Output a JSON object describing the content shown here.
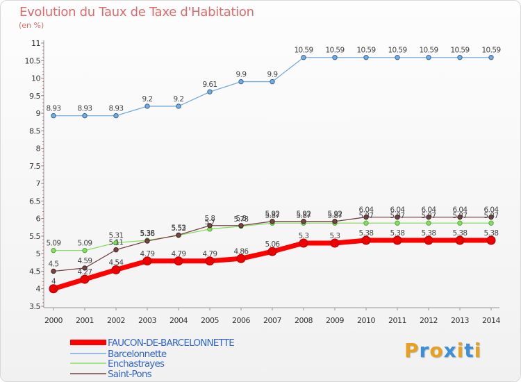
{
  "chart_data": {
    "type": "line",
    "title": "Evolution du Taux de Taxe d'Habitation",
    "subtitle": "(en %)",
    "xlabel": "",
    "ylabel": "",
    "x": [
      "2000",
      "2001",
      "2002",
      "2003",
      "2004",
      "2005",
      "2006",
      "2007",
      "2008",
      "2009",
      "2010",
      "2011",
      "2012",
      "2013",
      "2014"
    ],
    "ylim": [
      3.5,
      11
    ],
    "yticks": [
      "3.5",
      "4",
      "4.5",
      "5",
      "5.5",
      "6",
      "6.5",
      "7",
      "7.5",
      "8",
      "8.5",
      "9",
      "9.5",
      "10",
      "10.5",
      "11"
    ],
    "grid": false,
    "legend_position": "bottom-left",
    "series": [
      {
        "name": "FAUCON-DE-BARCELONNETTE",
        "color": "#ff0000",
        "values": [
          4.0,
          4.27,
          4.54,
          4.79,
          4.79,
          4.79,
          4.86,
          5.06,
          5.3,
          5.3,
          5.38,
          5.38,
          5.38,
          5.38,
          5.38
        ],
        "labels": [
          "4",
          "4.27",
          "4.54",
          "4.79",
          "4.79",
          "4.79",
          "4.86",
          "5.06",
          "5.3",
          "5.3",
          "5.38",
          "5.38",
          "5.38",
          "5.38",
          "5.38"
        ]
      },
      {
        "name": "Barcelonnette",
        "color": "#77aadd",
        "values": [
          8.93,
          8.93,
          8.93,
          9.2,
          9.2,
          9.61,
          9.9,
          9.9,
          10.59,
          10.59,
          10.59,
          10.59,
          10.59,
          10.59,
          10.59
        ],
        "labels": [
          "8.93",
          "8.93",
          "8.93",
          "9.2",
          "9.2",
          "9.61",
          "9.9",
          "9.9",
          "10.59",
          "10.59",
          "10.59",
          "10.59",
          "10.59",
          "10.59",
          "10.59"
        ]
      },
      {
        "name": "Enchastrayes",
        "color": "#88dd66",
        "values": [
          5.09,
          5.09,
          5.31,
          5.38,
          5.52,
          5.7,
          5.78,
          5.87,
          5.87,
          5.87,
          5.87,
          5.87,
          5.87,
          5.87,
          5.87
        ],
        "labels": [
          "5.09",
          "5.09",
          "5.31",
          "5.38",
          "5.52",
          "5.7",
          "5.78",
          "5.87",
          "5.87",
          "5.87",
          "5.87",
          "5.87",
          "5.87",
          "5.87",
          "5.87"
        ]
      },
      {
        "name": "Saint-Pons",
        "color": "#774444",
        "values": [
          4.5,
          4.59,
          5.11,
          5.36,
          5.53,
          5.8,
          5.8,
          5.92,
          5.92,
          5.92,
          6.04,
          6.04,
          6.04,
          6.04,
          6.04
        ],
        "labels": [
          "4.5",
          "4.59",
          "5.11",
          "5.36",
          "5.53",
          "5.8",
          "5.8",
          "5.92",
          "5.92",
          "5.92",
          "6.04",
          "6.04",
          "6.04",
          "6.04",
          "6.04"
        ]
      }
    ]
  },
  "logo": {
    "text": "Proxiti",
    "letter_colors": [
      "#e8a020",
      "#3a8fd8",
      "#e8a020",
      "#3a8fd8",
      "#e8a020",
      "#3a8fd8",
      "#e8a020"
    ]
  }
}
